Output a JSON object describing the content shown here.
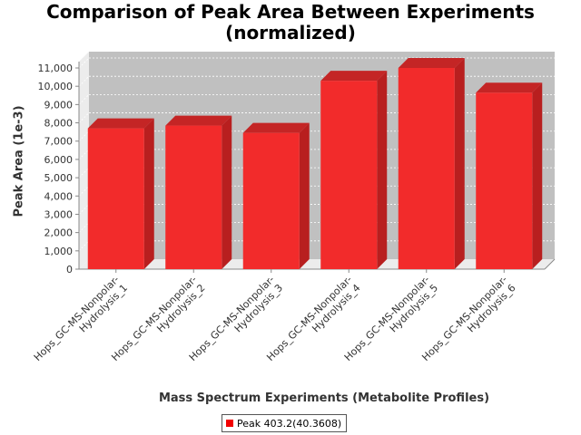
{
  "chart_data": {
    "type": "bar",
    "title": [
      "Comparison of Peak Area Between Experiments",
      "(normalized)"
    ],
    "xlabel": "Mass Spectrum Experiments (Metabolite Profiles)",
    "ylabel": "Peak Area (1e-3)",
    "categories": [
      [
        "Hops_GC-MS-Nonpolar-",
        "Hydrolysis_1"
      ],
      [
        "Hops_GC-MS-Nonpolar-",
        "Hydrolysis_2"
      ],
      [
        "Hops_GC-MS-Nonpolar-",
        "Hydrolysis_3"
      ],
      [
        "Hops_GC-MS-Nonpolar-",
        "Hydrolysis_4"
      ],
      [
        "Hops_GC-MS-Nonpolar-",
        "Hydrolysis_5"
      ],
      [
        "Hops_GC-MS-Nonpolar-",
        "Hydrolysis_6"
      ]
    ],
    "series": [
      {
        "name": "Peak 403.2(40.3608)",
        "values": [
          7700,
          7850,
          7450,
          10300,
          11000,
          9650
        ],
        "color": "#f22b2b"
      }
    ],
    "ylim": [
      0,
      11000
    ],
    "yticks": [
      "0",
      "1,000",
      "2,000",
      "3,000",
      "4,000",
      "5,000",
      "6,000",
      "7,000",
      "8,000",
      "9,000",
      "10,000",
      "11,000"
    ],
    "grid": true,
    "legend_position": "bottom-center",
    "plot_background": "#c0c0c0",
    "side_wall": "#ececec"
  }
}
